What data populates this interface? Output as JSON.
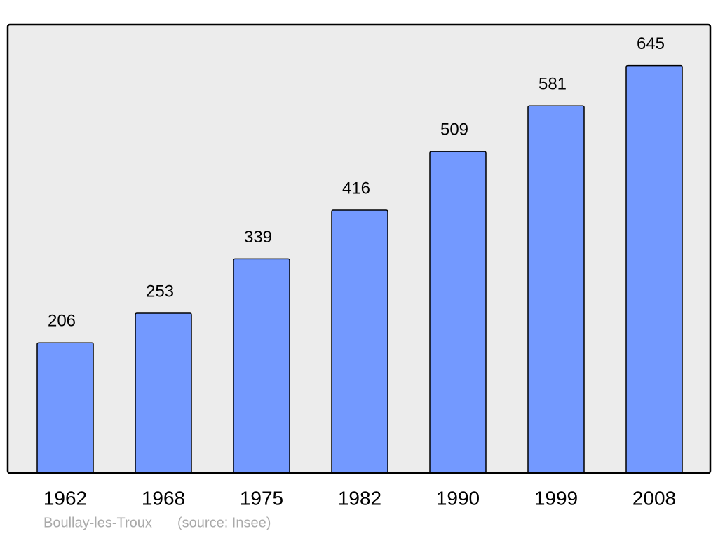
{
  "chart_data": {
    "type": "bar",
    "categories": [
      "1962",
      "1968",
      "1975",
      "1982",
      "1990",
      "1999",
      "2008"
    ],
    "values": [
      206,
      253,
      339,
      416,
      509,
      581,
      645
    ],
    "color": "#7399ff",
    "ylim": [
      0,
      710
    ],
    "grid": false,
    "annotations": [
      "Boullay-les-Troux",
      "(source: Insee)"
    ]
  }
}
